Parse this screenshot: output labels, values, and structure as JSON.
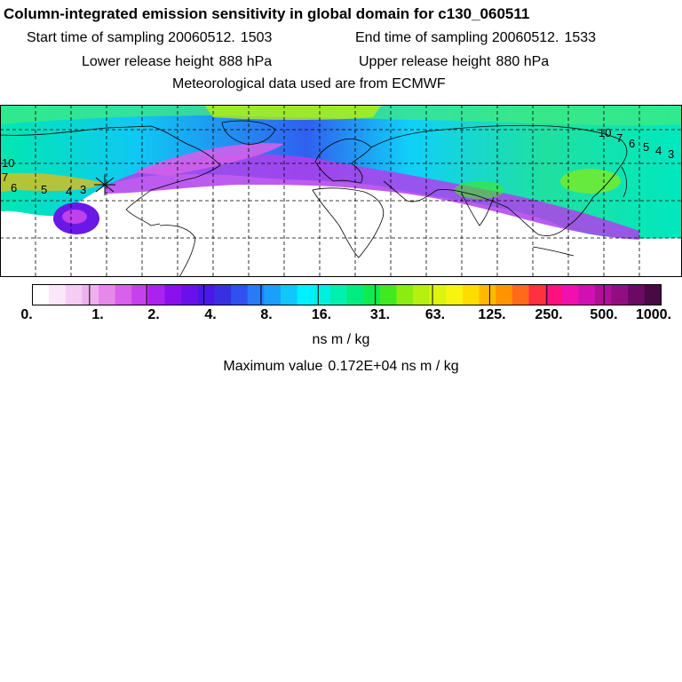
{
  "header": {
    "title": "Column-integrated emission sensitivity in global domain for c130_060511",
    "start_label": "Start time of sampling 20060512.",
    "start_value": "1503",
    "end_label": "End time of sampling 20060512.",
    "end_value": "1533",
    "lower_label": "Lower release height",
    "lower_value": "888 hPa",
    "upper_label": "Upper release height",
    "upper_value": "880 hPa",
    "met_line": "Meteorological data used are from ECMWF"
  },
  "map_labels": [
    "10",
    "7",
    "6",
    "5",
    "4",
    "3",
    "10",
    "7",
    "6",
    "5",
    "4",
    "3"
  ],
  "colorbar": {
    "tick_labels": [
      "0.",
      "1.",
      "2.",
      "4.",
      "8.",
      "16.",
      "31.",
      "63.",
      "125.",
      "250.",
      "500.",
      "1000."
    ],
    "colors": [
      "#ffffff",
      "#fce6fa",
      "#f6ccf4",
      "#efb0ee",
      "#e688ea",
      "#d860ea",
      "#c640ec",
      "#aa22ee",
      "#8a10ee",
      "#6a10ea",
      "#4a18e6",
      "#3830e0",
      "#3050f0",
      "#2a7af6",
      "#1aa0fa",
      "#10c6fc",
      "#00f0ff",
      "#00f0e0",
      "#00f0b0",
      "#00ec80",
      "#10ea50",
      "#40ea20",
      "#8aec10",
      "#b4f010",
      "#dcf410",
      "#f6f410",
      "#ffdc00",
      "#ffb800",
      "#ff9400",
      "#ff6a1a",
      "#ff3040",
      "#ff1080",
      "#f010b0",
      "#d010b0",
      "#b01098",
      "#900e80",
      "#6a0a62",
      "#4a0844"
    ],
    "unit": "ns m / kg"
  },
  "max_label": "Maximum value",
  "max_value": "0.172E+04 ns m / kg"
}
